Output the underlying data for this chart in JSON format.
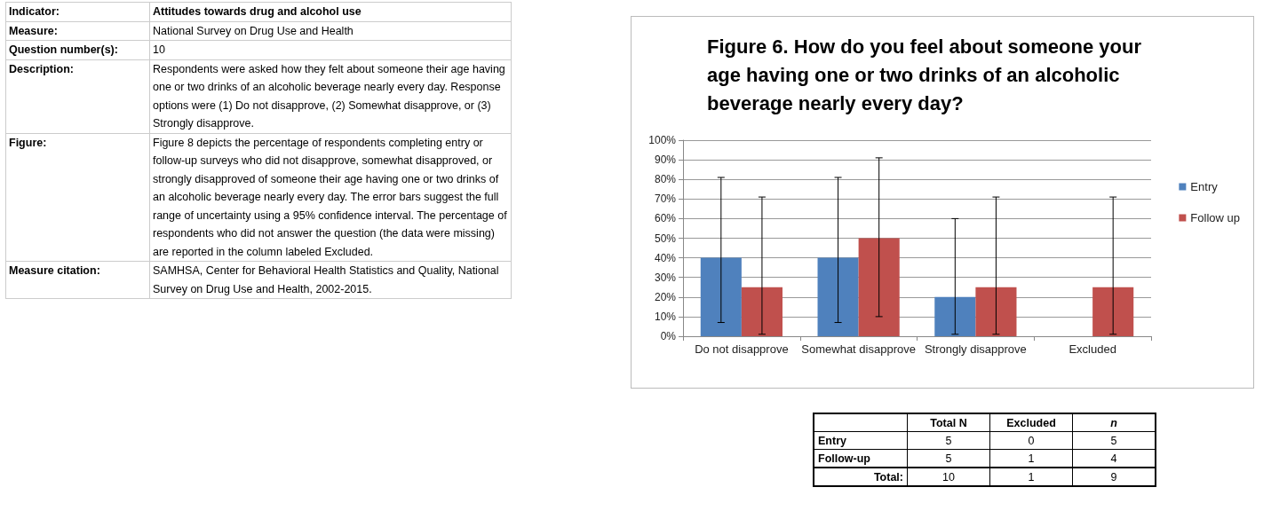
{
  "chart_data": {
    "type": "bar",
    "title": "Figure 6. How do you feel about someone your age having one or two drinks of an alcoholic beverage nearly every day?",
    "categories": [
      "Do not disapprove",
      "Somewhat disapprove",
      "Strongly disapprove",
      "Excluded"
    ],
    "series": [
      {
        "name": "Entry",
        "color": "#4f81bd",
        "values": [
          40,
          40,
          20,
          0
        ],
        "errors": [
          [
            7,
            81
          ],
          [
            7,
            81
          ],
          [
            1,
            60
          ],
          null
        ]
      },
      {
        "name": "Follow up",
        "color": "#c0504d",
        "values": [
          25,
          50,
          25,
          25
        ],
        "errors": [
          [
            1,
            71
          ],
          [
            10,
            91
          ],
          [
            1,
            71
          ],
          [
            1,
            71
          ]
        ]
      }
    ],
    "ylim": [
      0,
      100
    ],
    "yticks": [
      {
        "value": 0,
        "label": "0%"
      },
      {
        "value": 10,
        "label": "10%"
      },
      {
        "value": 20,
        "label": "20%"
      },
      {
        "value": 30,
        "label": "30%"
      },
      {
        "value": 40,
        "label": "40%"
      },
      {
        "value": 50,
        "label": "50%"
      },
      {
        "value": 60,
        "label": "60%"
      },
      {
        "value": 70,
        "label": "70%"
      },
      {
        "value": 80,
        "label": "80%"
      },
      {
        "value": 90,
        "label": "90%"
      },
      {
        "value": 100,
        "label": "100%"
      }
    ],
    "grid": "y",
    "legend": "right",
    "annotations": [
      "Indicator:",
      "Attitudes towards drug and alcohol use",
      "Measure:",
      "National Survey on Drug Use and Health",
      "Question number(s):",
      "10",
      "Description:",
      "Respondents were asked how they felt about someone their age having one or two drinks of an alcoholic beverage nearly every day. Response options were (1) Do not disapprove, (2) Somewhat disapprove, or (3) Strongly disapprove.",
      "Figure:",
      "Figure 8 depicts the percentage of respondents completing entry or follow-up surveys who did not disapprove, somewhat disapproved, or strongly disapproved of someone their age having one or two drinks of an alcoholic beverage nearly every day. The error bars suggest the full range of uncertainty using a 95% confidence interval. The percentage of respondents who did not answer the question (the data were missing) are reported in the column labeled Excluded.",
      "Measure citation:",
      "SAMHSA, Center for Behavioral Health Statistics and Quality, National Survey on Drug Use and Health, 2002-2015.",
      "Total N",
      "Excluded",
      "n",
      "Entry",
      "5",
      "0",
      "5",
      "Follow-up",
      "5",
      "1",
      "4",
      "Total:",
      "10",
      "1",
      "9"
    ]
  }
}
